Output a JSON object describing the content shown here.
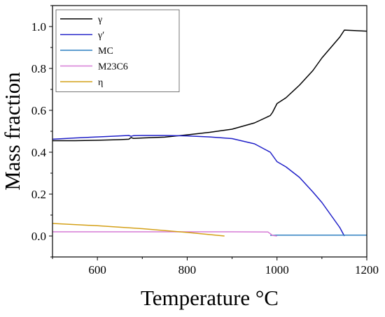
{
  "chart_data": {
    "type": "line",
    "xlabel": "Temperature °C",
    "ylabel": "Mass fraction",
    "xlim": [
      500,
      1200
    ],
    "ylim": [
      -0.1,
      1.1
    ],
    "xticks": [
      600,
      800,
      1000,
      1200
    ],
    "xtick_labels": [
      "600",
      "800",
      "1000",
      "1200"
    ],
    "yticks": [
      0.0,
      0.2,
      0.4,
      0.6,
      0.8,
      1.0
    ],
    "ytick_labels": [
      "0.0",
      "0.2",
      "0.4",
      "0.6",
      "0.8",
      "1.0"
    ],
    "grid": false,
    "legend_position": "top-left",
    "series": [
      {
        "name": "γ",
        "color": "#000000",
        "x": [
          500,
          550,
          600,
          650,
          670,
          675,
          680,
          700,
          750,
          800,
          850,
          900,
          950,
          985,
          990,
          1000,
          1020,
          1050,
          1080,
          1100,
          1120,
          1140,
          1150,
          1200
        ],
        "y": [
          0.455,
          0.455,
          0.457,
          0.46,
          0.462,
          0.47,
          0.466,
          0.468,
          0.472,
          0.483,
          0.495,
          0.51,
          0.54,
          0.575,
          0.59,
          0.632,
          0.66,
          0.72,
          0.79,
          0.85,
          0.9,
          0.95,
          0.983,
          0.978
        ]
      },
      {
        "name": "γ′",
        "color": "#1f1fc8",
        "x": [
          500,
          550,
          600,
          650,
          670,
          675,
          680,
          700,
          750,
          800,
          850,
          900,
          950,
          985,
          990,
          1000,
          1020,
          1050,
          1080,
          1100,
          1120,
          1140,
          1150
        ],
        "y": [
          0.462,
          0.468,
          0.473,
          0.478,
          0.48,
          0.476,
          0.479,
          0.48,
          0.48,
          0.478,
          0.473,
          0.465,
          0.44,
          0.4,
          0.385,
          0.355,
          0.33,
          0.28,
          0.21,
          0.16,
          0.1,
          0.04,
          0.0
        ]
      },
      {
        "name": "MC",
        "color": "#2c7fc0",
        "x": [
          985,
          1000,
          1200
        ],
        "y": [
          0.003,
          0.004,
          0.004
        ]
      },
      {
        "name": "M23C6",
        "color": "#d67ad6",
        "x": [
          500,
          600,
          700,
          800,
          900,
          980,
          990,
          1000
        ],
        "y": [
          0.02,
          0.02,
          0.02,
          0.02,
          0.02,
          0.019,
          0.003,
          0.0
        ]
      },
      {
        "name": "η",
        "color": "#d4a017",
        "x": [
          500,
          600,
          700,
          800,
          883
        ],
        "y": [
          0.06,
          0.049,
          0.035,
          0.017,
          0.0
        ]
      }
    ]
  }
}
